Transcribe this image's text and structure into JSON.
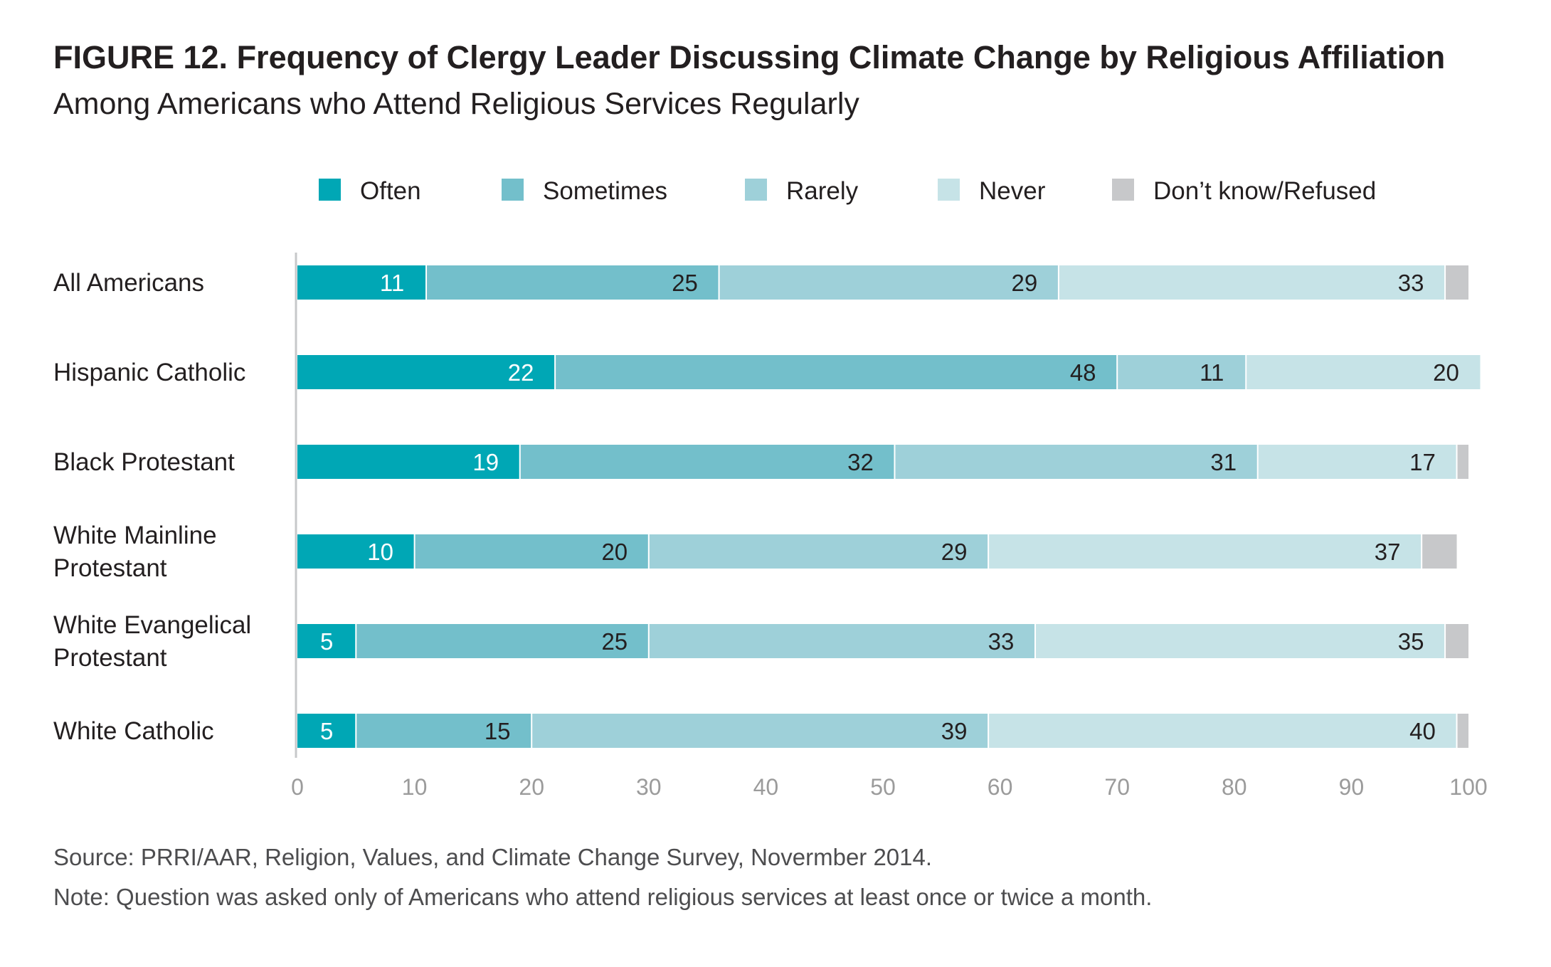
{
  "chart_data": {
    "type": "bar",
    "orientation": "horizontal",
    "stacked": true,
    "title": "FIGURE 12.  Frequency of Clergy Leader Discussing Climate Change by Religious Affiliation",
    "subtitle": "Among Americans who Attend Religious Services Regularly",
    "categories": [
      [
        "All Americans"
      ],
      [
        "Hispanic Catholic"
      ],
      [
        "Black Protestant"
      ],
      [
        "White Mainline",
        "Protestant"
      ],
      [
        "White Evangelical",
        "Protestant"
      ],
      [
        "White Catholic"
      ]
    ],
    "series": [
      {
        "name": "Often",
        "color": "#00a7b5",
        "label_color": "#ffffff",
        "values": [
          11,
          22,
          19,
          10,
          5,
          5
        ]
      },
      {
        "name": "Sometimes",
        "color": "#73bfcb",
        "label_color": "#231f20",
        "values": [
          25,
          48,
          32,
          20,
          25,
          15
        ]
      },
      {
        "name": "Rarely",
        "color": "#9ed0d9",
        "label_color": "#231f20",
        "values": [
          29,
          11,
          31,
          29,
          33,
          39
        ]
      },
      {
        "name": "Never",
        "color": "#c6e3e7",
        "label_color": "#231f20",
        "values": [
          33,
          20,
          17,
          37,
          35,
          40
        ]
      },
      {
        "name": "Don’t know/Refused",
        "color": "#c7c8ca",
        "label_color": "#231f20",
        "values": [
          2,
          0,
          1,
          3,
          2,
          1
        ]
      }
    ],
    "hidden_labels": [
      "Don’t know/Refused"
    ],
    "xlim": [
      0,
      100
    ],
    "xticks": [
      "0",
      "10",
      "20",
      "30",
      "40",
      "50",
      "60",
      "70",
      "80",
      "90",
      "100"
    ],
    "legend_position": "top",
    "grid": false
  },
  "footer": {
    "source": "Source: PRRI/AAR, Religion, Values, and Climate Change Survey, Novermber 2014.",
    "note": "Note: Question was asked only of Americans who attend religious services at least once or twice a month."
  }
}
